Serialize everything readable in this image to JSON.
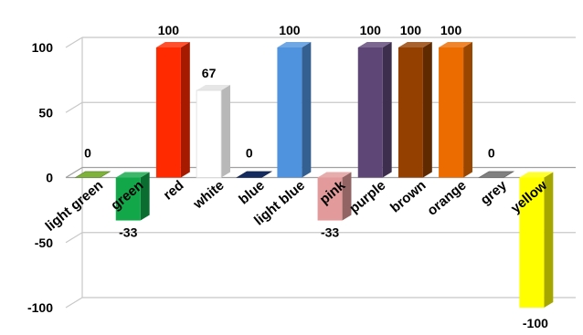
{
  "chart_data": {
    "type": "bar",
    "categories": [
      "light green",
      "green",
      "red",
      "white",
      "blue",
      "light blue",
      "pink",
      "purple",
      "brown",
      "orange",
      "grey",
      "yellow"
    ],
    "values": [
      0,
      -33,
      100,
      67,
      0,
      100,
      -33,
      100,
      100,
      100,
      0,
      -100
    ],
    "data_labels": [
      "0",
      "-33",
      "100",
      "67",
      "0",
      "100",
      "-33",
      "100",
      "100",
      "100",
      "0",
      "-100"
    ],
    "colors": [
      "#7FB23A",
      "#12A84A",
      "#FF2A00",
      "#FFFFFF",
      "#132B5E",
      "#4F93DE",
      "#E29A9A",
      "#5E4677",
      "#944000",
      "#EC6C00",
      "#808080",
      "#FFFF00"
    ],
    "yticks": [
      "100",
      "50",
      "0",
      "-50",
      "-100"
    ],
    "ylim": [
      -100,
      100
    ],
    "grid": true,
    "legend": "none",
    "style": "3d-column"
  }
}
